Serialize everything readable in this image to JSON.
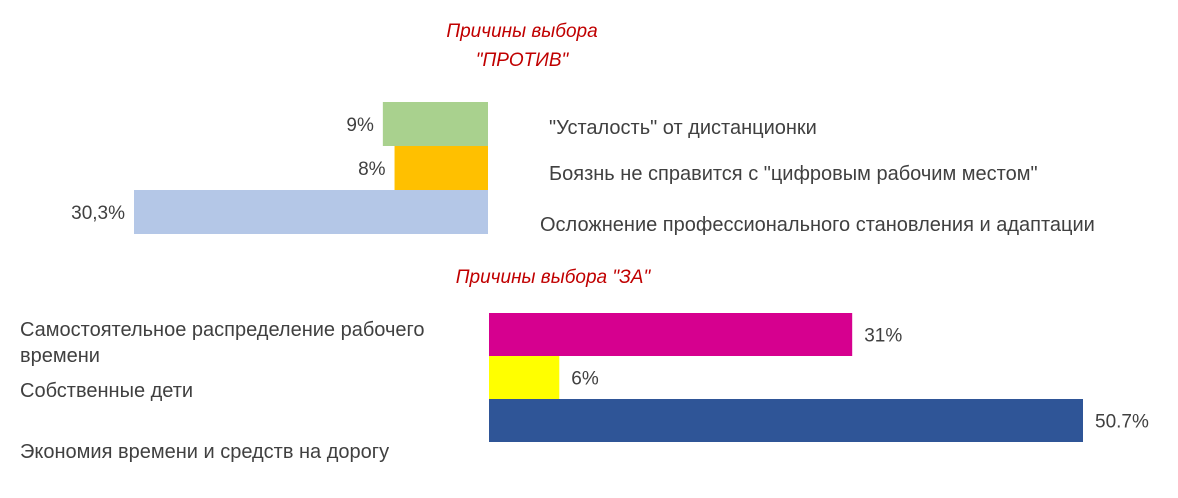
{
  "chart_data": [
    {
      "type": "bar",
      "orientation": "horizontal",
      "direction": "right-to-left",
      "title_lines": [
        "Причины выбора",
        "\"ПРОТИВ\""
      ],
      "categories": [
        "\"Усталость\" от дистанционки",
        "Боязнь не справится с \"цифровым рабочим местом\"",
        "Осложнение профессионального становления и адаптации"
      ],
      "values": [
        9,
        8,
        30.3
      ],
      "value_labels": [
        "9%",
        "8%",
        "30,3%"
      ],
      "colors": [
        "#a9d18e",
        "#ffc000",
        "#b4c7e7"
      ],
      "xlim": [
        0,
        30.3
      ],
      "grid": false,
      "legend": "none"
    },
    {
      "type": "bar",
      "orientation": "horizontal",
      "direction": "left-to-right",
      "title": "Причины выбора \"ЗА\"",
      "categories": [
        [
          "Самостоятельное распределение рабочего",
          "времени"
        ],
        [
          "Собственные дети"
        ],
        [
          "Экономия времени и средств на дорогу"
        ]
      ],
      "values": [
        31,
        6,
        50.7
      ],
      "value_labels": [
        "31%",
        "6%",
        "50.7%"
      ],
      "colors": [
        "#d6008f",
        "#ffff00",
        "#2f5597"
      ],
      "xlim": [
        0,
        50.7
      ],
      "grid": false,
      "legend": "none"
    }
  ]
}
